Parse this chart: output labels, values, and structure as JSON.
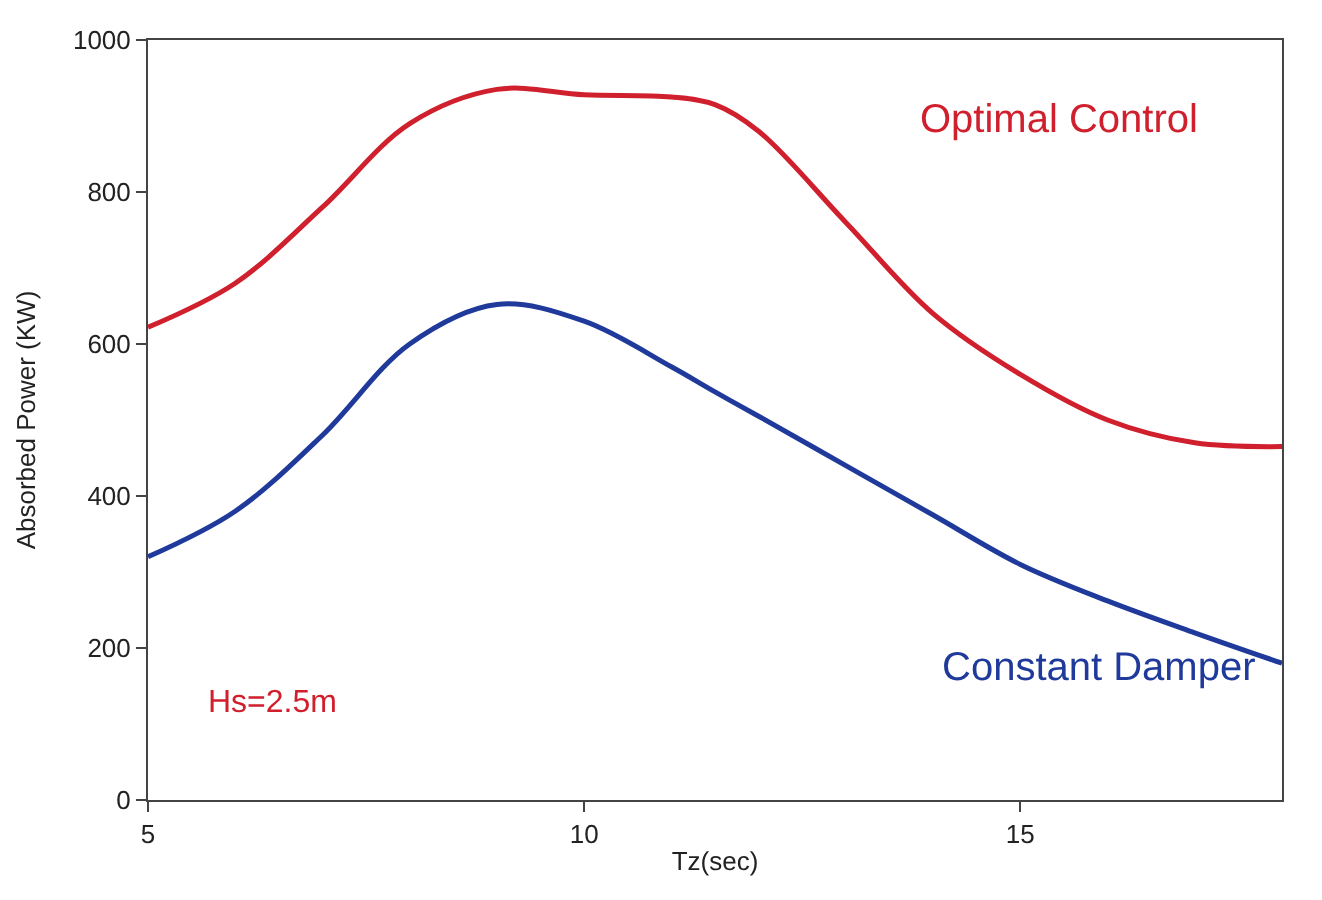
{
  "chart_data": {
    "type": "line",
    "xlabel": "Tz(sec)",
    "ylabel": "Absorbed Power (KW)",
    "x": [
      5,
      6,
      7,
      8,
      9,
      10,
      11,
      11.5,
      12,
      13,
      14,
      15,
      16,
      17,
      18
    ],
    "series": [
      {
        "name": "Optimal Control",
        "color": "#d0202e",
        "values": [
          622,
          680,
          780,
          890,
          935,
          928,
          925,
          915,
          880,
          760,
          640,
          560,
          500,
          470,
          465
        ]
      },
      {
        "name": "Constant Damper",
        "color": "#1f3a9a",
        "values": [
          320,
          380,
          480,
          600,
          652,
          630,
          570,
          537,
          505,
          440,
          375,
          310,
          262,
          220,
          180
        ]
      }
    ],
    "annotations": [
      "Hs=2.5m"
    ],
    "xlim": [
      5,
      18
    ],
    "xticks": [
      5,
      10,
      15
    ],
    "ylim": [
      0,
      1000
    ],
    "yticks": [
      0,
      200,
      400,
      600,
      800,
      1000
    ],
    "legend": false,
    "marker": "none",
    "line_style": "solid"
  }
}
